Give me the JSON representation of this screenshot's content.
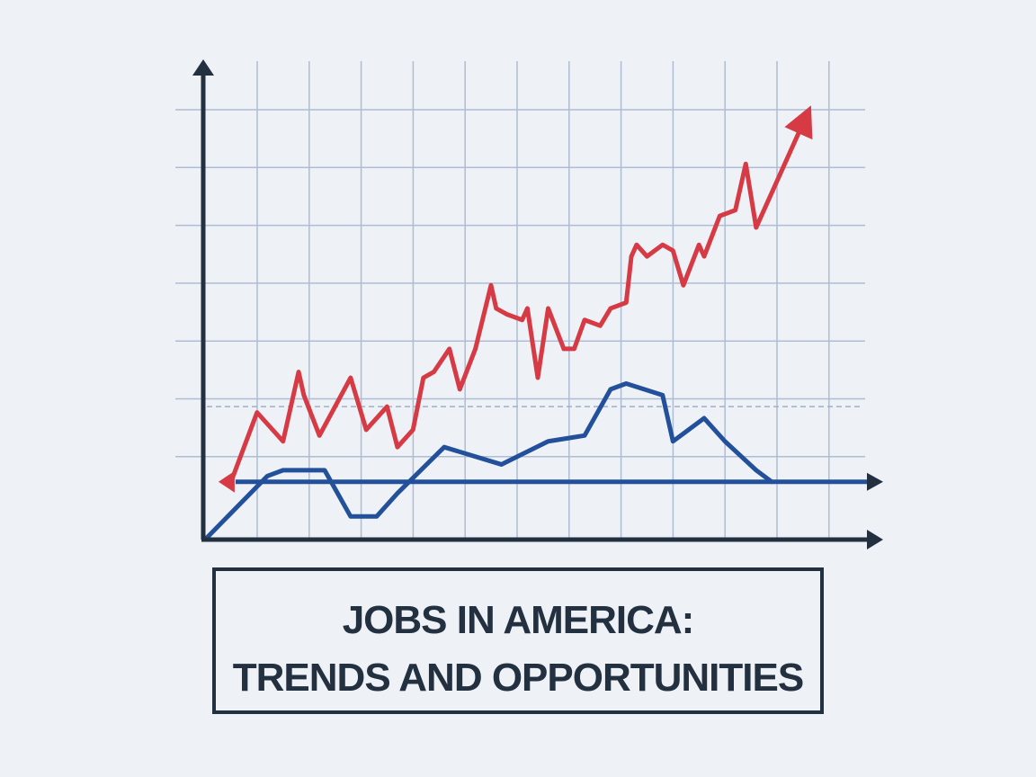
{
  "chart_data": {
    "type": "line",
    "title": [
      "JOBS IN AMERICA:",
      "TRENDS AND OPPORTUNITIES"
    ],
    "xlim": [
      0,
      12.8
    ],
    "ylim": [
      0,
      8.2
    ],
    "grid": true,
    "reference_line": 1.0,
    "dashed_line": 2.3,
    "series": [
      {
        "color": "#d63b45",
        "x": [
          0.5,
          1.0,
          1.5,
          1.8,
          1.9,
          2.2,
          2.5,
          2.8,
          2.9,
          3.1,
          3.5,
          3.7,
          4.0,
          4.2,
          4.4,
          4.7,
          4.9,
          5.2,
          5.5,
          5.6,
          5.8,
          6.1,
          6.2,
          6.4,
          6.6,
          6.9,
          7.1,
          7.3,
          7.6,
          7.8,
          8.1,
          8.2,
          8.3,
          8.5,
          8.8,
          9.0,
          9.2,
          9.5,
          9.6,
          9.9,
          10.2,
          10.4,
          10.6,
          11.5
        ],
        "values": [
          1.0,
          2.2,
          1.7,
          2.9,
          2.5,
          1.8,
          2.3,
          2.8,
          2.5,
          1.9,
          2.3,
          1.6,
          1.9,
          2.8,
          2.9,
          3.3,
          2.6,
          3.3,
          4.4,
          4.0,
          3.9,
          3.8,
          4.0,
          2.8,
          4.0,
          3.3,
          3.3,
          3.8,
          3.7,
          4.0,
          4.1,
          4.9,
          5.1,
          4.9,
          5.1,
          5.0,
          4.4,
          5.1,
          4.9,
          5.6,
          5.7,
          6.5,
          5.4,
          7.2
        ]
      },
      {
        "color": "#23509a",
        "x": [
          0,
          1.2,
          1.5,
          2.3,
          2.8,
          3.3,
          3.7,
          4.6,
          5.7,
          6.6,
          7.3,
          7.8,
          8.1,
          8.8,
          9.0,
          9.6,
          10.0,
          10.6,
          10.9
        ],
        "values": [
          0,
          1.1,
          1.2,
          1.2,
          0.4,
          0.4,
          0.8,
          1.6,
          1.3,
          1.7,
          1.8,
          2.6,
          2.7,
          2.5,
          1.7,
          2.1,
          1.7,
          1.2,
          1.0
        ]
      }
    ]
  }
}
